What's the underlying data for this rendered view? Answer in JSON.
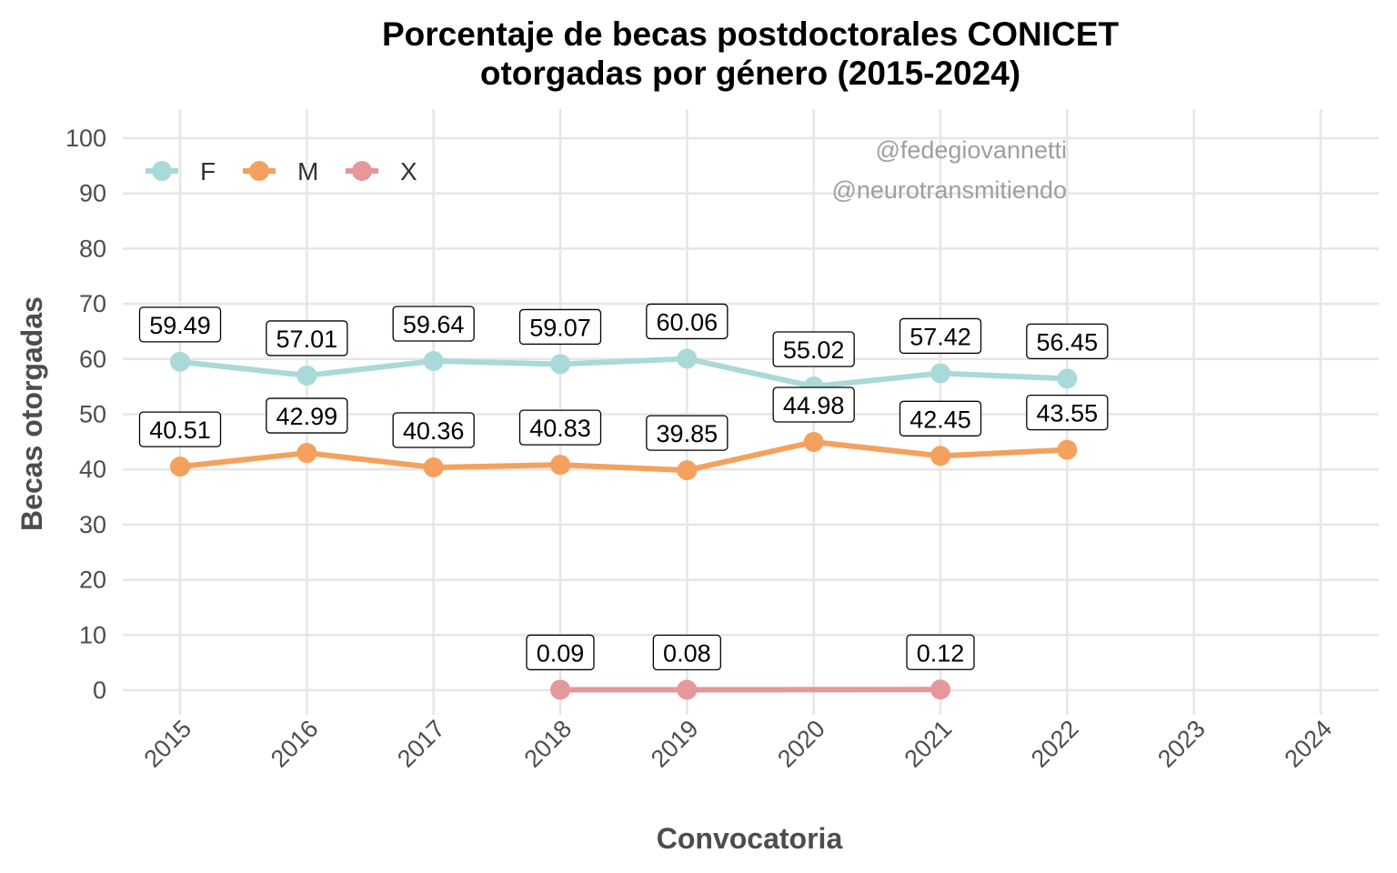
{
  "chart_data": {
    "type": "line",
    "title": [
      "Porcentaje de becas postdoctorales CONICET",
      "otorgadas por género (2015-2024)"
    ],
    "xlabel": "Convocatoria",
    "ylabel": "Becas otorgadas",
    "x": [
      2015,
      2016,
      2017,
      2018,
      2019,
      2020,
      2021,
      2022,
      2023,
      2024
    ],
    "ylim": [
      0,
      100
    ],
    "yticks": [
      0,
      10,
      20,
      30,
      40,
      50,
      60,
      70,
      80,
      90,
      100
    ],
    "grid": true,
    "legend_position": "top-left",
    "series": [
      {
        "name": "F",
        "color": "#a9d9d9",
        "points": [
          [
            2015,
            59.49
          ],
          [
            2016,
            57.01
          ],
          [
            2017,
            59.64
          ],
          [
            2018,
            59.07
          ],
          [
            2019,
            60.06
          ],
          [
            2020,
            55.02
          ],
          [
            2021,
            57.42
          ],
          [
            2022,
            56.45
          ]
        ]
      },
      {
        "name": "M",
        "color": "#f4a15d",
        "points": [
          [
            2015,
            40.51
          ],
          [
            2016,
            42.99
          ],
          [
            2017,
            40.36
          ],
          [
            2018,
            40.83
          ],
          [
            2019,
            39.85
          ],
          [
            2020,
            44.98
          ],
          [
            2021,
            42.45
          ],
          [
            2022,
            43.55
          ]
        ]
      },
      {
        "name": "X",
        "color": "#e5979b",
        "points": [
          [
            2018,
            0.09
          ],
          [
            2019,
            0.08
          ],
          [
            2021,
            0.12
          ]
        ]
      }
    ],
    "watermarks": [
      "@fedegiovannetti",
      "@neurotransmitiendo"
    ]
  }
}
